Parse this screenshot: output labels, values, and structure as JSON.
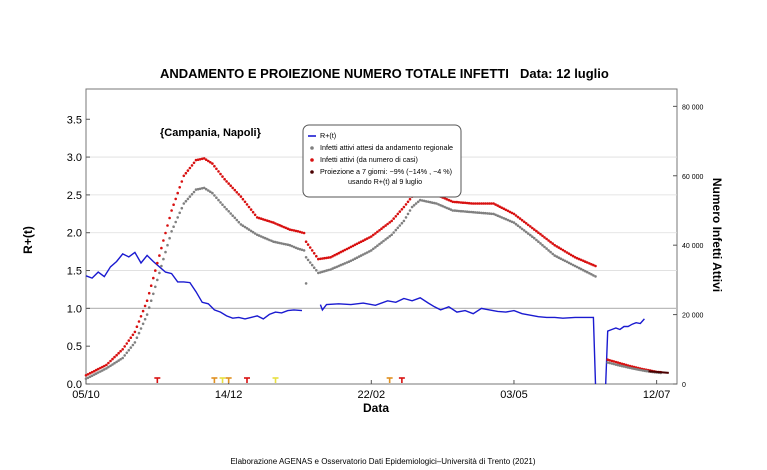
{
  "chart_data": {
    "type": "line",
    "title": "ANDAMENTO E PROIEZIONE NUMERO TOTALE INFETTI",
    "date_label": "Data: 12 luglio",
    "annotation": "{Campania, Napoli}",
    "xlabel": "Data",
    "ylabel_left": "R+(t)",
    "ylabel_right": "Numero Infetti Attivi",
    "footer": "Elaborazione AGENAS e Osservatorio Dati Epidemiologici–Università di Trento (2021)",
    "x_range_days": [
      0,
      290
    ],
    "x_ticks": [
      {
        "day": 0,
        "label": "05/10"
      },
      {
        "day": 70,
        "label": "14/12"
      },
      {
        "day": 140,
        "label": "22/02"
      },
      {
        "day": 210,
        "label": "03/05"
      },
      {
        "day": 280,
        "label": "12/07"
      }
    ],
    "ylim_left": [
      0,
      3.9
    ],
    "y_ticks_left": [
      "0.0",
      "0.5",
      "1.0",
      "1.5",
      "2.0",
      "2.5",
      "3.0",
      "3.5"
    ],
    "ylim_right": [
      0,
      85000
    ],
    "y_ticks_right": [
      "0",
      "20 000",
      "40 000",
      "60 000",
      "80 000"
    ],
    "grid": false,
    "reference_lines": [
      1.0,
      1.5,
      2.0,
      2.5,
      3.0
    ],
    "legend_position": "upper-center",
    "legend": [
      {
        "label": "R+(t)",
        "color": "#1a1ad0",
        "marker": "line"
      },
      {
        "label": "Infetti attivi attesi da andamento regionale",
        "color": "#808080",
        "marker": "dot"
      },
      {
        "label": "Infetti attivi (da numero di casi)",
        "color": "#d81010",
        "marker": "dot"
      },
      {
        "label": "Proiezione a 7 giorni: −9% (−14% , −4 %)",
        "label2": "usando R+(t) al 9 luglio",
        "color": "#d81010",
        "marker": "dot-dark"
      }
    ],
    "series": [
      {
        "name": "R+(t)",
        "axis": "left",
        "color": "#1a1ad0",
        "style": "line",
        "segments": [
          [
            [
              0,
              1.43
            ],
            [
              3,
              1.4
            ],
            [
              6,
              1.48
            ],
            [
              9,
              1.42
            ],
            [
              12,
              1.55
            ],
            [
              15,
              1.62
            ],
            [
              18,
              1.72
            ],
            [
              21,
              1.68
            ],
            [
              24,
              1.74
            ],
            [
              27,
              1.6
            ],
            [
              30,
              1.7
            ],
            [
              33,
              1.62
            ],
            [
              36,
              1.55
            ],
            [
              39,
              1.48
            ],
            [
              42,
              1.46
            ],
            [
              45,
              1.35
            ],
            [
              48,
              1.35
            ],
            [
              51,
              1.34
            ],
            [
              54,
              1.22
            ],
            [
              57,
              1.08
            ],
            [
              60,
              1.06
            ],
            [
              63,
              0.98
            ],
            [
              66,
              0.95
            ],
            [
              69,
              0.9
            ],
            [
              72,
              0.87
            ],
            [
              75,
              0.88
            ],
            [
              78,
              0.86
            ],
            [
              81,
              0.88
            ],
            [
              84,
              0.9
            ],
            [
              87,
              0.86
            ],
            [
              90,
              0.92
            ],
            [
              93,
              0.95
            ],
            [
              96,
              0.94
            ],
            [
              99,
              0.97
            ],
            [
              102,
              0.98
            ],
            [
              106,
              0.97
            ]
          ],
          [
            [
              115,
              1.05
            ],
            [
              116,
              0.98
            ],
            [
              118,
              1.05
            ],
            [
              124,
              1.06
            ],
            [
              130,
              1.05
            ],
            [
              136,
              1.07
            ],
            [
              142,
              1.04
            ],
            [
              148,
              1.1
            ],
            [
              152,
              1.08
            ],
            [
              156,
              1.13
            ],
            [
              160,
              1.1
            ],
            [
              164,
              1.14
            ],
            [
              168,
              1.07
            ],
            [
              171,
              1.02
            ],
            [
              174,
              0.98
            ],
            [
              178,
              1.02
            ],
            [
              182,
              0.95
            ],
            [
              186,
              0.97
            ],
            [
              190,
              0.93
            ],
            [
              194,
              1.0
            ],
            [
              198,
              0.98
            ],
            [
              202,
              0.96
            ],
            [
              206,
              0.95
            ],
            [
              210,
              0.97
            ],
            [
              214,
              0.93
            ],
            [
              218,
              0.91
            ],
            [
              222,
              0.89
            ],
            [
              226,
              0.88
            ],
            [
              230,
              0.88
            ],
            [
              234,
              0.87
            ],
            [
              240,
              0.88
            ],
            [
              246,
              0.88
            ],
            [
              249,
              0.88
            ],
            [
              250,
              0.0
            ]
          ],
          [
            [
              255,
              0.0
            ],
            [
              256,
              0.7
            ],
            [
              258,
              0.72
            ],
            [
              260,
              0.74
            ],
            [
              262,
              0.72
            ],
            [
              264,
              0.76
            ],
            [
              266,
              0.76
            ],
            [
              268,
              0.79
            ],
            [
              270,
              0.81
            ],
            [
              272,
              0.8
            ],
            [
              274,
              0.86
            ]
          ]
        ]
      },
      {
        "name": "Infetti attivi attesi da andamento regionale",
        "axis": "right",
        "color": "#808080",
        "style": "dots",
        "anchors": [
          [
            0,
            1500
          ],
          [
            10,
            4500
          ],
          [
            18,
            7500
          ],
          [
            24,
            12000
          ],
          [
            30,
            20000
          ],
          [
            36,
            32000
          ],
          [
            42,
            44000
          ],
          [
            48,
            52000
          ],
          [
            54,
            56000
          ],
          [
            58,
            56500
          ],
          [
            62,
            55000
          ],
          [
            68,
            51000
          ],
          [
            76,
            46000
          ],
          [
            84,
            43000
          ],
          [
            92,
            41000
          ],
          [
            100,
            40000
          ],
          [
            104,
            39000
          ],
          [
            107,
            38500
          ],
          [
            108,
            36500
          ],
          [
            114,
            32000
          ],
          [
            120,
            33000
          ],
          [
            130,
            35500
          ],
          [
            140,
            38500
          ],
          [
            150,
            43000
          ],
          [
            156,
            47000
          ],
          [
            160,
            51000
          ],
          [
            164,
            53000
          ],
          [
            172,
            52000
          ],
          [
            180,
            50000
          ],
          [
            190,
            49500
          ],
          [
            200,
            49000
          ],
          [
            210,
            46500
          ],
          [
            220,
            42000
          ],
          [
            230,
            37000
          ],
          [
            240,
            34000
          ],
          [
            250,
            31000
          ]
        ],
        "extra_points": [
          [
            108,
            29000
          ]
        ]
      },
      {
        "name": "Infetti attivi (da numero di casi)",
        "axis": "right",
        "color": "#d81010",
        "style": "dots",
        "anchors": [
          [
            0,
            2500
          ],
          [
            10,
            5500
          ],
          [
            18,
            10000
          ],
          [
            24,
            15000
          ],
          [
            30,
            24000
          ],
          [
            36,
            37000
          ],
          [
            42,
            50000
          ],
          [
            48,
            60000
          ],
          [
            54,
            64500
          ],
          [
            58,
            65000
          ],
          [
            62,
            63500
          ],
          [
            68,
            59000
          ],
          [
            76,
            54000
          ],
          [
            84,
            48000
          ],
          [
            92,
            46500
          ],
          [
            100,
            44500
          ],
          [
            104,
            44000
          ],
          [
            107,
            43500
          ],
          [
            108,
            41000
          ],
          [
            114,
            36000
          ],
          [
            120,
            36500
          ],
          [
            130,
            39500
          ],
          [
            140,
            42500
          ],
          [
            150,
            47000
          ],
          [
            156,
            51000
          ],
          [
            160,
            54000
          ],
          [
            164,
            55000
          ],
          [
            172,
            54500
          ],
          [
            180,
            52500
          ],
          [
            190,
            52000
          ],
          [
            200,
            52000
          ],
          [
            210,
            49000
          ],
          [
            220,
            44500
          ],
          [
            230,
            40000
          ],
          [
            240,
            36500
          ],
          [
            250,
            34000
          ]
        ]
      },
      {
        "name": "Infetti attivi (code)",
        "axis": "right",
        "color": "#d81010",
        "style": "dots",
        "anchors": [
          [
            256,
            7000
          ],
          [
            262,
            6000
          ],
          [
            268,
            5000
          ],
          [
            274,
            4200
          ],
          [
            280,
            3500
          ],
          [
            282,
            3400
          ]
        ]
      },
      {
        "name": "Infetti attivi attesi (code)",
        "axis": "right",
        "color": "#808080",
        "style": "dots",
        "anchors": [
          [
            256,
            6200
          ],
          [
            262,
            5300
          ],
          [
            268,
            4500
          ],
          [
            274,
            3800
          ],
          [
            280,
            3300
          ],
          [
            282,
            3200
          ]
        ]
      },
      {
        "name": "Proiezione a 7 giorni",
        "axis": "right",
        "color": "#4a0000",
        "style": "line",
        "anchors": [
          [
            276,
            3700
          ],
          [
            286,
            3200
          ]
        ]
      }
    ],
    "markers": [
      {
        "day": 35,
        "color": "#d81010",
        "shape": "T"
      },
      {
        "day": 63,
        "color": "#e09020",
        "shape": "T"
      },
      {
        "day": 67,
        "color": "#e8e040",
        "shape": "T"
      },
      {
        "day": 70,
        "color": "#e09020",
        "shape": "T"
      },
      {
        "day": 79,
        "color": "#d81010",
        "shape": "T"
      },
      {
        "day": 93,
        "color": "#e8e040",
        "shape": "T"
      },
      {
        "day": 149,
        "color": "#e09020",
        "shape": "T"
      },
      {
        "day": 155,
        "color": "#d81010",
        "shape": "T"
      }
    ]
  }
}
